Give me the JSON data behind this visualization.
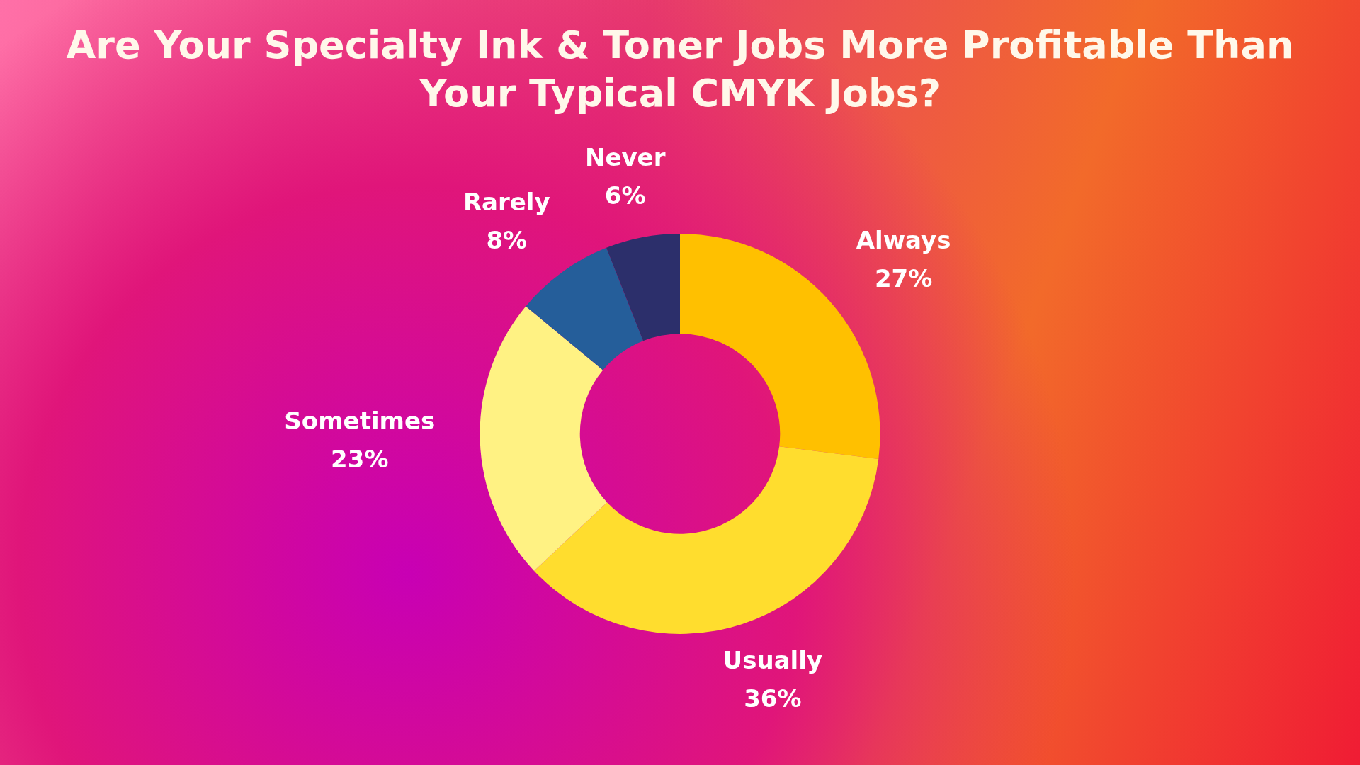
{
  "chart_data": {
    "type": "donut",
    "title": "Are Your Specialty Ink & Toner Jobs More Profitable Than Your Typical CMYK Jobs?",
    "categories": [
      "Always",
      "Usually",
      "Sometimes",
      "Rarely",
      "Never"
    ],
    "values": [
      27,
      36,
      23,
      8,
      6
    ],
    "value_labels": [
      "27%",
      "36%",
      "23%",
      "8%",
      "6%"
    ],
    "colors": [
      "#ffc000",
      "#ffdd2e",
      "#fff283",
      "#255e9a",
      "#2c2f6b"
    ],
    "legend": false
  }
}
